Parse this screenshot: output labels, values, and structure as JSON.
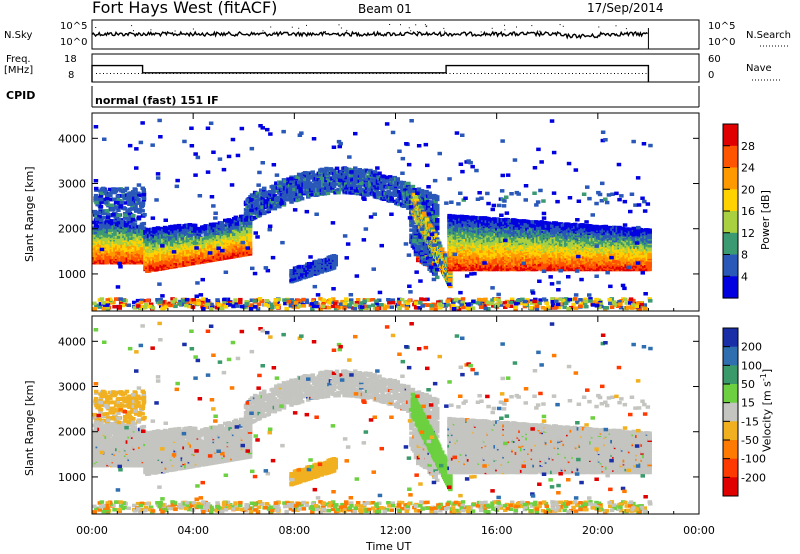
{
  "header": {
    "site": "Fort Hays West (fitACF)",
    "beam": "Beam 01",
    "date": "17/Sep/2014"
  },
  "strips": {
    "nsky": {
      "label": "N.Sky",
      "ticks_left": [
        "10^5",
        "10^0"
      ],
      "ticks_right": [
        "10^5",
        "10^0"
      ],
      "right_label": "N.Search"
    },
    "freq": {
      "label": "Freq.",
      "unit": "[MHz]",
      "ticks_left": [
        "18",
        "8"
      ],
      "ticks_right": [
        "60",
        "0"
      ],
      "right_label": "Nave",
      "steps": [
        {
          "x0": 0,
          "x1": 2,
          "v": 14
        },
        {
          "x0": 2,
          "x1": 14,
          "v": 11
        },
        {
          "x0": 14,
          "x1": 22,
          "v": 14
        }
      ]
    },
    "cpid": {
      "label": "CPID",
      "text": "normal (fast) 151 IF"
    }
  },
  "chart_data": [
    {
      "type": "heatmap",
      "name": "power-panel",
      "ylabel": "Slant Range [km]",
      "yticks": [
        "4000",
        "3000",
        "2000",
        "1000"
      ],
      "ytick_values": [
        4000,
        3000,
        2000,
        1000
      ],
      "ylim": [
        180,
        4560
      ],
      "xlim": [
        0,
        24
      ],
      "colorbar": {
        "title": "Power [dB]",
        "labels": [
          "28",
          "24",
          "20",
          "16",
          "12",
          "8",
          "4"
        ],
        "colors": [
          "#e00000",
          "#ff5500",
          "#ff9900",
          "#ffd200",
          "#a8d040",
          "#3c9a72",
          "#2a58b8",
          "#0000e0"
        ]
      }
    },
    {
      "type": "heatmap",
      "name": "velocity-panel",
      "ylabel": "Slant Range [km]",
      "yticks": [
        "4000",
        "3000",
        "2000",
        "1000"
      ],
      "ytick_values": [
        4000,
        3000,
        2000,
        1000
      ],
      "ylim": [
        180,
        4560
      ],
      "xlim": [
        0,
        24
      ],
      "colorbar": {
        "title": "Velocity [m s",
        "title_sup": "-1",
        "title_end": "]",
        "labels": [
          "200",
          "100",
          "50",
          "15",
          "-15",
          "-50",
          "-100",
          "-200"
        ],
        "colors": [
          "#1a2ea8",
          "#2f6fb0",
          "#3a9a6a",
          "#6cd040",
          "#c4c4c0",
          "#f0b020",
          "#ff7a00",
          "#ff3a00",
          "#e00000"
        ]
      }
    }
  ],
  "xaxis": {
    "title": "Time UT",
    "ticks": [
      "00:00",
      "04:00",
      "08:00",
      "12:00",
      "16:00",
      "20:00",
      "00:00"
    ],
    "tick_values": [
      0,
      4,
      8,
      12,
      16,
      20,
      24
    ]
  }
}
